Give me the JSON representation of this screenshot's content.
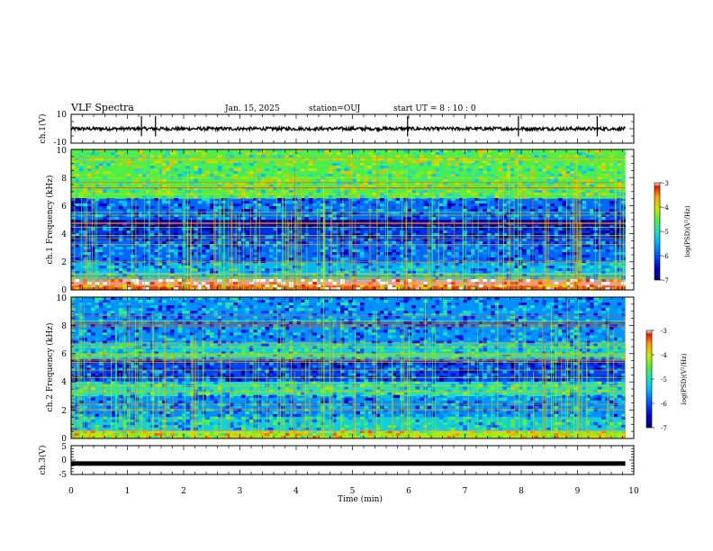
{
  "header": {
    "title": "VLF Spectra",
    "date": "Jan. 15, 2025",
    "station": "station=OUJ",
    "start_ut": "start  UT =  8 : 10 : 0"
  },
  "colors": {
    "colormap": [
      "#00006e",
      "#0000d0",
      "#0050ff",
      "#00b0ff",
      "#20e0c0",
      "#50f040",
      "#c8e800",
      "#ffa000",
      "#e81800",
      "#ffffff"
    ],
    "trace": "#000000"
  },
  "chart_data": [
    {
      "type": "line",
      "name": "ch1-waveform",
      "ylabel": "ch.1(V)",
      "ylim": [
        -10,
        10
      ],
      "yticks": [
        "10",
        "-10"
      ],
      "xlim": [
        0,
        10
      ],
      "series": [
        {
          "baseline": 0,
          "amplitude": 1.2,
          "spike_times_min": [
            1.25,
            1.5,
            5.98,
            7.95,
            9.35
          ]
        }
      ]
    },
    {
      "type": "heatmap",
      "name": "ch1-spectrogram",
      "ylabel": "ch.1 Frequency (kHz)",
      "ylim": [
        0,
        10
      ],
      "yticks": [
        "0",
        "2",
        "4",
        "6",
        "8",
        "10"
      ],
      "xlim": [
        0,
        10
      ],
      "zlim": [
        -7,
        -3
      ],
      "colorbar": {
        "label": "log(PSD)(V²/Hz)",
        "ticks": [
          "-3",
          "-4",
          "-5",
          "-6",
          "-7"
        ]
      },
      "bands_khz": [
        {
          "from": 0,
          "to": 0.3,
          "level": -3.6
        },
        {
          "from": 0.3,
          "to": 0.7,
          "level": -3.2
        },
        {
          "from": 0.7,
          "to": 1.2,
          "level": -5.2
        },
        {
          "from": 1.2,
          "to": 2.0,
          "level": -5.6
        },
        {
          "from": 2.0,
          "to": 3.5,
          "level": -6.0
        },
        {
          "from": 3.5,
          "to": 4.5,
          "level": -6.3
        },
        {
          "from": 4.5,
          "to": 5.0,
          "level": -6.7
        },
        {
          "from": 5.0,
          "to": 6.5,
          "level": -6.0
        },
        {
          "from": 6.5,
          "to": 10.0,
          "level": -4.8
        }
      ]
    },
    {
      "type": "heatmap",
      "name": "ch2-spectrogram",
      "ylabel": "ch.2 Frequency (kHz)",
      "ylim": [
        0,
        10
      ],
      "yticks": [
        "0",
        "2",
        "4",
        "6",
        "8",
        "10"
      ],
      "xlim": [
        0,
        10
      ],
      "zlim": [
        -7,
        -3
      ],
      "colorbar": {
        "label": "log(PSD)(V²/Hz)",
        "ticks": [
          "-3",
          "-4",
          "-5",
          "-6",
          "-7"
        ]
      },
      "bands_khz": [
        {
          "from": 0,
          "to": 0.5,
          "level": -4.4
        },
        {
          "from": 0.5,
          "to": 1.5,
          "level": -5.4
        },
        {
          "from": 1.5,
          "to": 3.0,
          "level": -5.8
        },
        {
          "from": 3.0,
          "to": 4.0,
          "level": -5.2
        },
        {
          "from": 4.0,
          "to": 5.5,
          "level": -6.2
        },
        {
          "from": 5.5,
          "to": 6.8,
          "level": -5.4
        },
        {
          "from": 6.8,
          "to": 10.0,
          "level": -5.8
        }
      ]
    },
    {
      "type": "line",
      "name": "ch3-waveform",
      "ylabel": "ch.3(V)",
      "ylim": [
        -5,
        5
      ],
      "yticks": [
        "5",
        "0",
        "-5"
      ],
      "xlim": [
        0,
        10
      ],
      "series": [
        {
          "baseline": -1.2,
          "amplitude": 0.25
        }
      ]
    }
  ],
  "xaxis": {
    "label": "Time (min)",
    "ticks": [
      "0",
      "1",
      "2",
      "3",
      "4",
      "5",
      "6",
      "7",
      "8",
      "9",
      "10"
    ],
    "data_end_min": 9.85
  }
}
